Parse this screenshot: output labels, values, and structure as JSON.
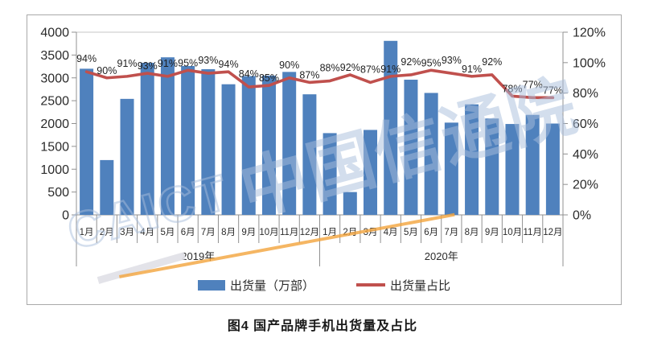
{
  "caption": "图4  国产品牌手机出货量及占比",
  "watermark": {
    "latin": "CAICT",
    "cjk": "中国信通院"
  },
  "legend": [
    {
      "label": "出货量（万部）",
      "marker": "bar-swatch",
      "color": "#4F81BD"
    },
    {
      "label": "出货量占比",
      "marker": "line-swatch",
      "color": "#C0504D"
    }
  ],
  "chart_data": {
    "type": "bar",
    "combo": "bar+line dual-axis",
    "categories": [
      "1月",
      "2月",
      "3月",
      "4月",
      "5月",
      "6月",
      "7月",
      "8月",
      "9月",
      "10月",
      "11月",
      "12月",
      "1月",
      "2月",
      "3月",
      "4月",
      "5月",
      "6月",
      "7月",
      "8月",
      "9月",
      "10月",
      "11月",
      "12月"
    ],
    "year_groups": [
      {
        "label": "2019年",
        "span": 12
      },
      {
        "label": "2020年",
        "span": 12
      }
    ],
    "series": [
      {
        "name": "出货量（万部）",
        "type": "bar",
        "axis": "left",
        "color": "#4F81BD",
        "values": [
          3200,
          1200,
          2540,
          3330,
          3450,
          3260,
          3190,
          2860,
          3040,
          3050,
          3130,
          2640,
          1790,
          500,
          1860,
          3810,
          2960,
          2670,
          2020,
          2420,
          2110,
          1990,
          2190,
          2000
        ]
      },
      {
        "name": "出货量占比",
        "type": "line",
        "axis": "right",
        "color": "#C0504D",
        "unit": "%",
        "values": [
          94,
          90,
          91,
          93,
          91,
          95,
          93,
          94,
          84,
          85,
          90,
          87,
          88,
          92,
          87,
          91,
          92,
          95,
          93,
          91,
          92,
          78,
          77,
          77
        ]
      }
    ],
    "left_axis": {
      "min": 0,
      "max": 4000,
      "step": 500,
      "suffix": ""
    },
    "right_axis": {
      "min": 0,
      "max": 120,
      "step": 20,
      "suffix": "%"
    },
    "data_labels": {
      "series": "出货量占比",
      "format": "{value}%"
    },
    "legend_position": "bottom",
    "grid": false
  }
}
